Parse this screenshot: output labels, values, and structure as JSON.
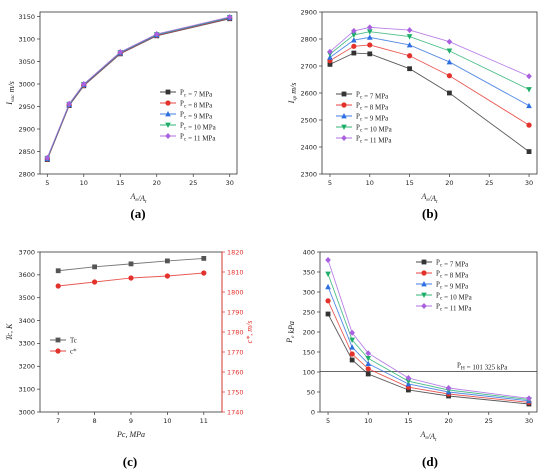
{
  "chart_data": [
    {
      "type": "line",
      "panel_label": "(a)",
      "xlabel": "A_e/A_t",
      "ylabel": "I_vac m/s",
      "xlim": [
        4,
        31
      ],
      "ylim": [
        2800,
        3160
      ],
      "xticks": [
        5,
        10,
        15,
        20,
        25,
        30
      ],
      "yticks": [
        2800,
        2850,
        2900,
        2950,
        3000,
        3050,
        3100,
        3150
      ],
      "x": [
        5,
        8,
        10,
        15,
        20,
        30
      ],
      "legend_position": "center-right",
      "series": [
        {
          "name": "P_c = 7 MPa",
          "color": "#333333",
          "marker": "square",
          "values": [
            2832,
            2952,
            2996,
            3067,
            3107,
            3145
          ]
        },
        {
          "name": "P_c = 8 MPa",
          "color": "#e3312b",
          "marker": "circle",
          "values": [
            2833,
            2953,
            2997,
            3068,
            3108,
            3146
          ]
        },
        {
          "name": "P_c = 9 MPa",
          "color": "#2d6fe0",
          "marker": "triangle-up",
          "values": [
            2834,
            2954,
            2998,
            3069,
            3109,
            3147
          ]
        },
        {
          "name": "P_c = 10 MPa",
          "color": "#1fae6a",
          "marker": "triangle-down",
          "values": [
            2835,
            2955,
            2999,
            3070,
            3110,
            3148
          ]
        },
        {
          "name": "P_c = 11 MPa",
          "color": "#a860e0",
          "marker": "diamond",
          "values": [
            2836,
            2956,
            3000,
            3071,
            3111,
            3149
          ]
        }
      ]
    },
    {
      "type": "line",
      "panel_label": "(b)",
      "xlabel": "A_e/A_t",
      "ylabel": "I_sp m/s",
      "xlim": [
        4,
        31
      ],
      "ylim": [
        2300,
        2900
      ],
      "xticks": [
        5,
        10,
        15,
        20,
        25,
        30
      ],
      "yticks": [
        2300,
        2400,
        2500,
        2600,
        2700,
        2800,
        2900
      ],
      "x": [
        5,
        8,
        10,
        15,
        20,
        30
      ],
      "legend_position": "bottom-left",
      "series": [
        {
          "name": "P_c = 7 MPa",
          "color": "#333333",
          "marker": "square",
          "values": [
            2706,
            2748,
            2745,
            2690,
            2600,
            2383
          ]
        },
        {
          "name": "P_c = 8 MPa",
          "color": "#e3312b",
          "marker": "circle",
          "values": [
            2720,
            2773,
            2778,
            2738,
            2664,
            2481
          ]
        },
        {
          "name": "P_c = 9 MPa",
          "color": "#2d6fe0",
          "marker": "triangle-up",
          "values": [
            2732,
            2796,
            2806,
            2778,
            2715,
            2553
          ]
        },
        {
          "name": "P_c = 10 MPa",
          "color": "#1fae6a",
          "marker": "triangle-down",
          "values": [
            2744,
            2815,
            2827,
            2809,
            2756,
            2613
          ]
        },
        {
          "name": "P_c = 11 MPa",
          "color": "#a860e0",
          "marker": "diamond",
          "values": [
            2753,
            2830,
            2843,
            2833,
            2790,
            2662
          ]
        }
      ]
    },
    {
      "type": "line",
      "panel_label": "(c)",
      "xlabel": "Pc, MPa",
      "ylabel": "Tc, K",
      "ylabel_right": "c*, m/s",
      "xlim": [
        6.5,
        11.5
      ],
      "ylim": [
        3000,
        3700
      ],
      "ylim_right": [
        1740,
        1820
      ],
      "xticks": [
        7,
        8,
        9,
        10,
        11
      ],
      "yticks": [
        3000,
        3100,
        3200,
        3300,
        3400,
        3500,
        3600,
        3700
      ],
      "yticks_right": [
        1740,
        1750,
        1760,
        1770,
        1780,
        1790,
        1800,
        1810,
        1820
      ],
      "x": [
        7,
        8,
        9,
        10,
        11
      ],
      "legend_position": "center-left",
      "series": [
        {
          "name": "Tc",
          "axis": "left",
          "color": "#555555",
          "marker": "square",
          "values": [
            3618,
            3635,
            3648,
            3661,
            3672
          ]
        },
        {
          "name": "c*",
          "axis": "right",
          "color": "#e3312b",
          "marker": "circle",
          "values": [
            1803,
            1805,
            1807,
            1808,
            1809.5
          ]
        }
      ]
    },
    {
      "type": "line",
      "panel_label": "(d)",
      "xlabel": "A_e/A_t",
      "ylabel": "P_e kPa",
      "xlim": [
        4,
        31
      ],
      "ylim": [
        0,
        400
      ],
      "xticks": [
        5,
        10,
        15,
        20,
        25,
        30
      ],
      "yticks": [
        0,
        50,
        100,
        150,
        200,
        250,
        300,
        350,
        400
      ],
      "x": [
        5,
        8,
        10,
        15,
        20,
        30
      ],
      "legend_position": "top-right",
      "reference_line": {
        "value": 101.325,
        "label": "P_H = 101 325 kPa"
      },
      "series": [
        {
          "name": "P_c = 7 MPa",
          "color": "#333333",
          "marker": "square",
          "values": [
            245,
            130,
            95,
            55,
            40,
            20
          ]
        },
        {
          "name": "P_c = 8 MPa",
          "color": "#e3312b",
          "marker": "circle",
          "values": [
            278,
            145,
            108,
            62,
            45,
            24
          ]
        },
        {
          "name": "P_c = 9 MPa",
          "color": "#2d6fe0",
          "marker": "triangle-up",
          "values": [
            313,
            162,
            121,
            70,
            50,
            28
          ]
        },
        {
          "name": "P_c = 10 MPa",
          "color": "#1fae6a",
          "marker": "triangle-down",
          "values": [
            345,
            180,
            134,
            77,
            55,
            31
          ]
        },
        {
          "name": "P_c = 11 MPa",
          "color": "#a860e0",
          "marker": "diamond",
          "values": [
            380,
            198,
            147,
            85,
            60,
            34
          ]
        }
      ]
    }
  ]
}
